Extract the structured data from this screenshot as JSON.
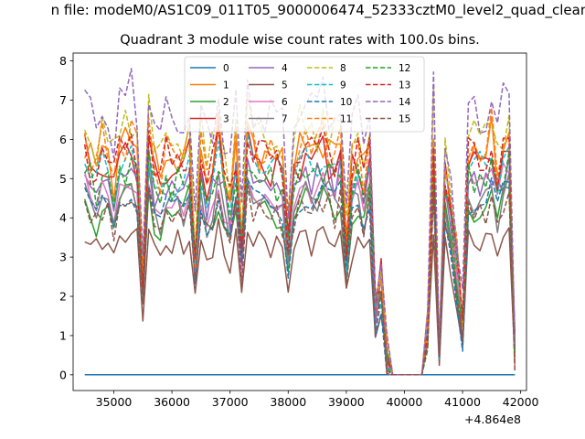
{
  "figure": {
    "suptitle": "n file: modeM0/AS1C09_011T05_9000006474_52333cztM0_level2_quad_clean",
    "title": "Quadrant 3 module wise count rates with 100.0s bins.",
    "x_offset_label": "+4.864e8"
  },
  "chart_data": {
    "type": "line",
    "title": "Quadrant 3 module wise count rates with 100.0s bins.",
    "xlabel": "",
    "ylabel": "",
    "x_offset": 486400000,
    "xlim": [
      34300,
      42100
    ],
    "ylim": [
      -0.4,
      8.2
    ],
    "xticks": [
      35000,
      36000,
      37000,
      38000,
      39000,
      40000,
      41000,
      42000
    ],
    "yticks": [
      0,
      1,
      2,
      3,
      4,
      5,
      6,
      7,
      8
    ],
    "legend_position": "upper-center",
    "x": [
      34500,
      34600,
      34700,
      34800,
      34900,
      35000,
      35100,
      35200,
      35300,
      35400,
      35500,
      35600,
      35700,
      35800,
      35900,
      36000,
      36100,
      36200,
      36300,
      36400,
      36500,
      36600,
      36700,
      36800,
      36900,
      37000,
      37100,
      37200,
      37300,
      37400,
      37500,
      37600,
      37700,
      37800,
      37900,
      38000,
      38100,
      38200,
      38300,
      38400,
      38500,
      38600,
      38700,
      38800,
      38900,
      39000,
      39100,
      39200,
      39300,
      39400,
      39500,
      39600,
      39700,
      39800,
      39900,
      40000,
      40100,
      40200,
      40300,
      40400,
      40500,
      40600,
      40700,
      40800,
      40900,
      41000,
      41100,
      41200,
      41300,
      41400,
      41500,
      41600,
      41700,
      41800,
      41900
    ],
    "series_pattern": [
      1.0,
      0.92,
      0.88,
      0.97,
      0.93,
      0.83,
      0.97,
      0.98,
      1.02,
      0.94,
      0.45,
      1.05,
      0.88,
      0.84,
      0.94,
      0.9,
      0.93,
      0.9,
      0.99,
      0.52,
      0.95,
      0.83,
      0.88,
      1.02,
      0.86,
      0.79,
      0.97,
      0.58,
      1.02,
      0.96,
      0.95,
      0.94,
      0.92,
      0.92,
      0.89,
      0.6,
      0.93,
      0.97,
      0.98,
      0.94,
      0.97,
      1.02,
      0.96,
      0.94,
      1.0,
      0.55,
      0.9,
      0.95,
      0.85,
      0.99,
      0.29,
      0.42,
      0.06,
      0.0,
      0.0,
      0.0,
      0.0,
      0.0,
      0.0,
      0.18,
      1.05,
      0.1,
      0.89,
      0.73,
      0.48,
      0.22,
      0.96,
      0.95,
      0.94,
      0.91,
      1.02,
      0.87,
      0.98,
      0.99,
      0.1
    ],
    "series": [
      {
        "name": "0",
        "color": "#1f77b4",
        "dash": false,
        "level": 0.0
      },
      {
        "name": "1",
        "color": "#ff7f0e",
        "dash": false,
        "level": 6.0
      },
      {
        "name": "2",
        "color": "#2ca02c",
        "dash": false,
        "level": 4.5
      },
      {
        "name": "3",
        "color": "#d62728",
        "dash": false,
        "level": 5.7
      },
      {
        "name": "4",
        "color": "#9467bd",
        "dash": false,
        "level": 5.2
      },
      {
        "name": "5",
        "color": "#8c564b",
        "dash": false,
        "level": 3.6
      },
      {
        "name": "6",
        "color": "#e377c2",
        "dash": false,
        "level": 5.0
      },
      {
        "name": "7",
        "color": "#7f7f7f",
        "dash": false,
        "level": 4.7
      },
      {
        "name": "8",
        "color": "#bcbd22",
        "dash": true,
        "level": 6.5
      },
      {
        "name": "9",
        "color": "#17becf",
        "dash": true,
        "level": 5.5
      },
      {
        "name": "10",
        "color": "#1f77b4",
        "dash": true,
        "level": 4.6
      },
      {
        "name": "11",
        "color": "#ff7f0e",
        "dash": true,
        "level": 6.1
      },
      {
        "name": "12",
        "color": "#2ca02c",
        "dash": true,
        "level": 5.3
      },
      {
        "name": "13",
        "color": "#d62728",
        "dash": true,
        "level": 5.9
      },
      {
        "name": "14",
        "color": "#9467bd",
        "dash": true,
        "level": 7.1
      },
      {
        "name": "15",
        "color": "#8c564b",
        "dash": true,
        "level": 4.4
      }
    ]
  }
}
